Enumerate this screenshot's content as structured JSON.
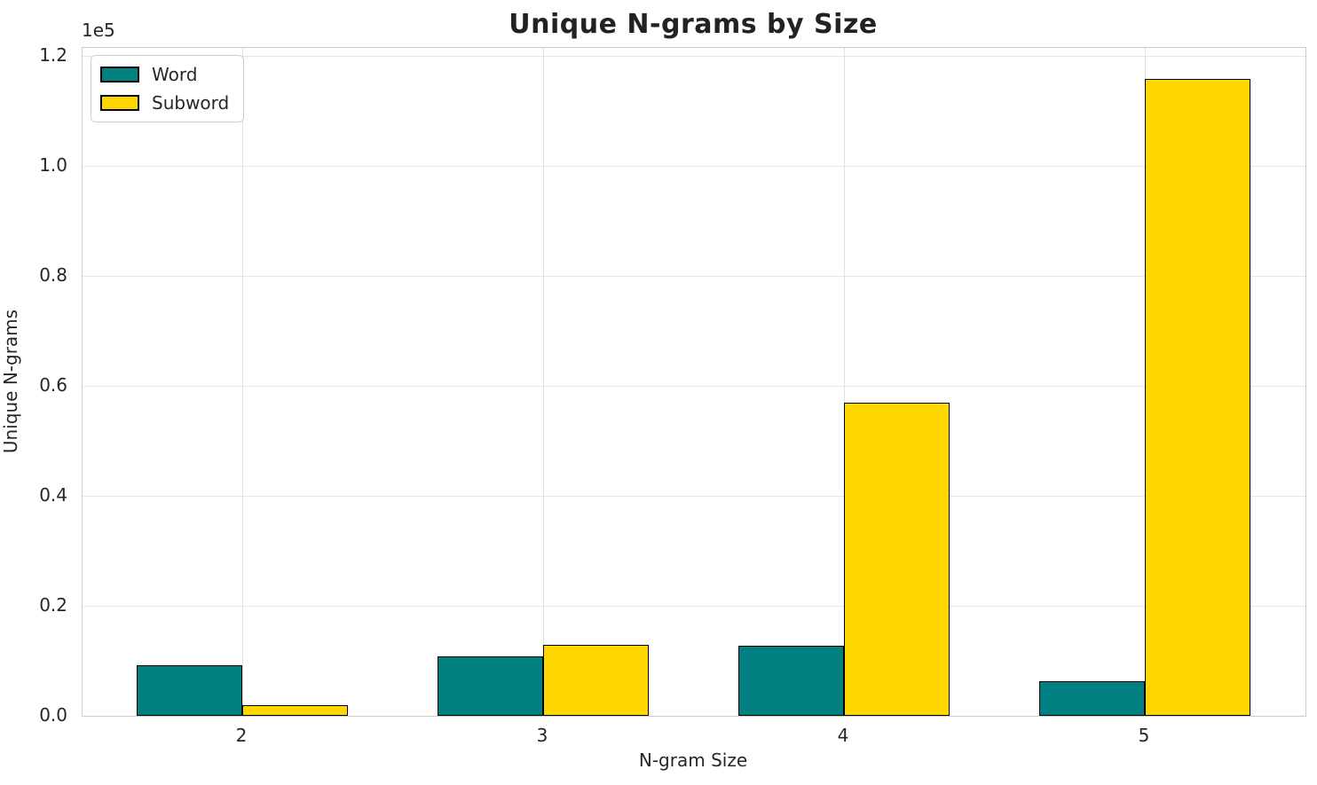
{
  "chart_data": {
    "type": "bar",
    "title": "Unique N-grams by Size",
    "xlabel": "N-gram Size",
    "ylabel": "Unique N-grams",
    "y_offset_label": "1e5",
    "categories": [
      "2",
      "3",
      "4",
      "5"
    ],
    "series": [
      {
        "name": "Word",
        "color": "#008080",
        "values": [
          9200,
          10800,
          12800,
          6300
        ]
      },
      {
        "name": "Subword",
        "color": "#FFD700",
        "values": [
          1900,
          12900,
          56900,
          115800
        ]
      }
    ],
    "edge_color": "#000000",
    "grid": true,
    "legend_position": "upper left",
    "ylim": [
      0,
      121500
    ],
    "y_ticks": [
      {
        "value": 0,
        "label": "0.0"
      },
      {
        "value": 20000,
        "label": "0.2"
      },
      {
        "value": 40000,
        "label": "0.4"
      },
      {
        "value": 60000,
        "label": "0.6"
      },
      {
        "value": 80000,
        "label": "0.8"
      },
      {
        "value": 100000,
        "label": "1.0"
      },
      {
        "value": 120000,
        "label": "1.2"
      }
    ]
  }
}
